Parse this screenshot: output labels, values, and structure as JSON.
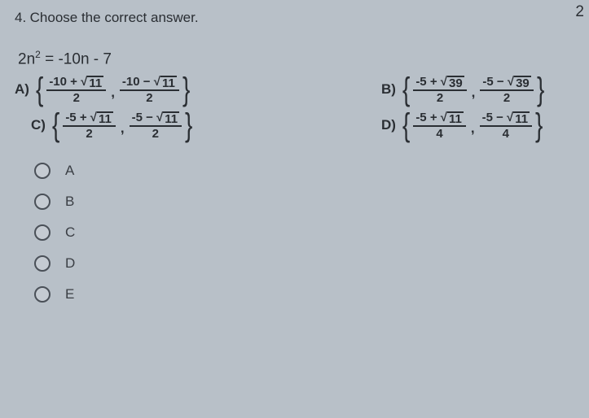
{
  "corner": "2",
  "question": {
    "number": "4.",
    "text": "Choose the correct answer."
  },
  "equation": {
    "lhs_a": "2n",
    "lhs_exp": "2",
    "rhs": " = -10n - 7"
  },
  "options": {
    "A": {
      "label": "A)",
      "f1n_pre": "-10 + ",
      "f1n_rad": "11",
      "f2n_pre": "-10 − ",
      "f2n_rad": "11",
      "den": "2"
    },
    "B": {
      "label": "B)",
      "f1n_pre": "-5 + ",
      "f1n_rad": "39",
      "f2n_pre": "-5 − ",
      "f2n_rad": "39",
      "den": "2"
    },
    "C": {
      "label": "C)",
      "f1n_pre": "-5 + ",
      "f1n_rad": "11",
      "f2n_pre": "-5 − ",
      "f2n_rad": "11",
      "den": "2"
    },
    "D": {
      "label": "D)",
      "f1n_pre": "-5 + ",
      "f1n_rad": "11",
      "f2n_pre": "-5 − ",
      "f2n_rad": "11",
      "den": "4"
    }
  },
  "radios": [
    "A",
    "B",
    "C",
    "D",
    "E"
  ]
}
